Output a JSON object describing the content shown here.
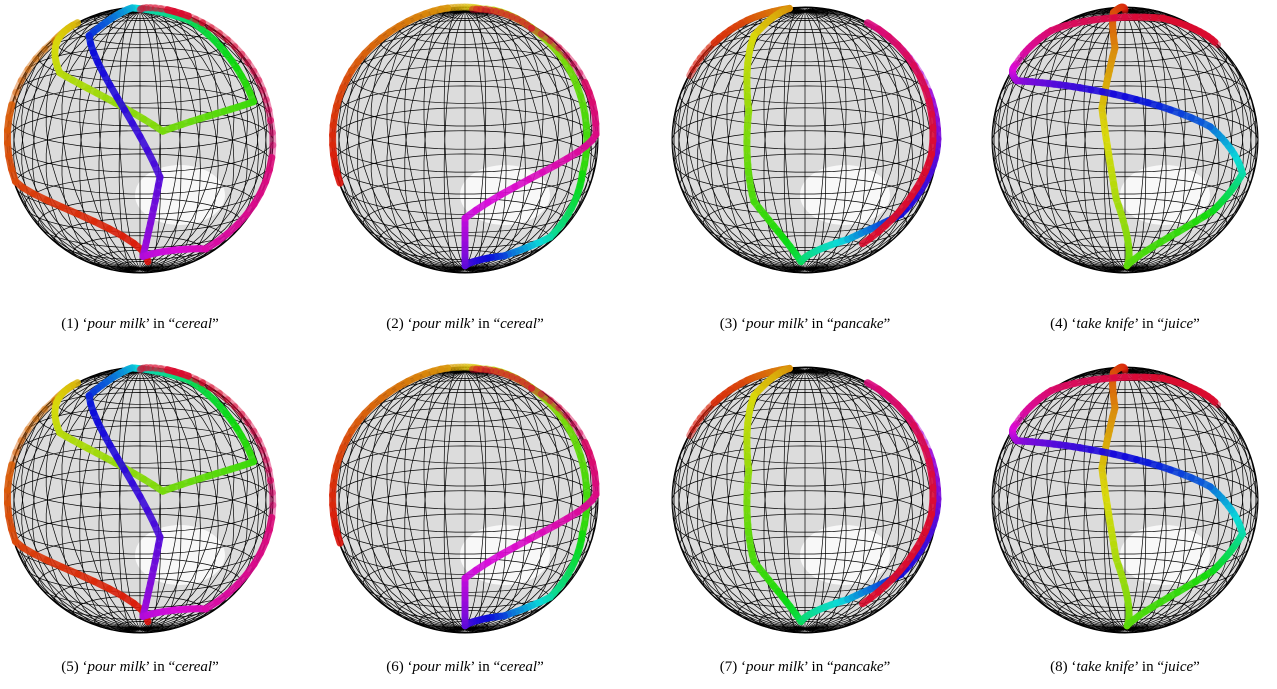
{
  "figure": {
    "panels": [
      {
        "caption": [
          "(1) ‘",
          "pour milk",
          "’ in “",
          "cereal",
          "”"
        ]
      },
      {
        "caption": [
          "(2) ‘",
          "pour milk",
          "’ in “",
          "cereal",
          "”"
        ]
      },
      {
        "caption": [
          "(3) ‘",
          "pour milk",
          "’ in “",
          "pancake",
          "”"
        ]
      },
      {
        "caption": [
          "(4) ‘",
          "take knife",
          "’ in “",
          "juice",
          "”"
        ]
      },
      {
        "caption": [
          "(5) ‘",
          "pour milk",
          "’ in “",
          "cereal",
          "”"
        ]
      },
      {
        "caption": [
          "(6) ‘",
          "pour milk",
          "’ in “",
          "cereal",
          "”"
        ]
      },
      {
        "caption": [
          "(7) ‘",
          "pour milk",
          "’ in “",
          "pancake",
          "”"
        ]
      },
      {
        "caption": [
          "(8) ‘",
          "take knife",
          "’ in “",
          "juice",
          "”"
        ]
      }
    ]
  }
}
